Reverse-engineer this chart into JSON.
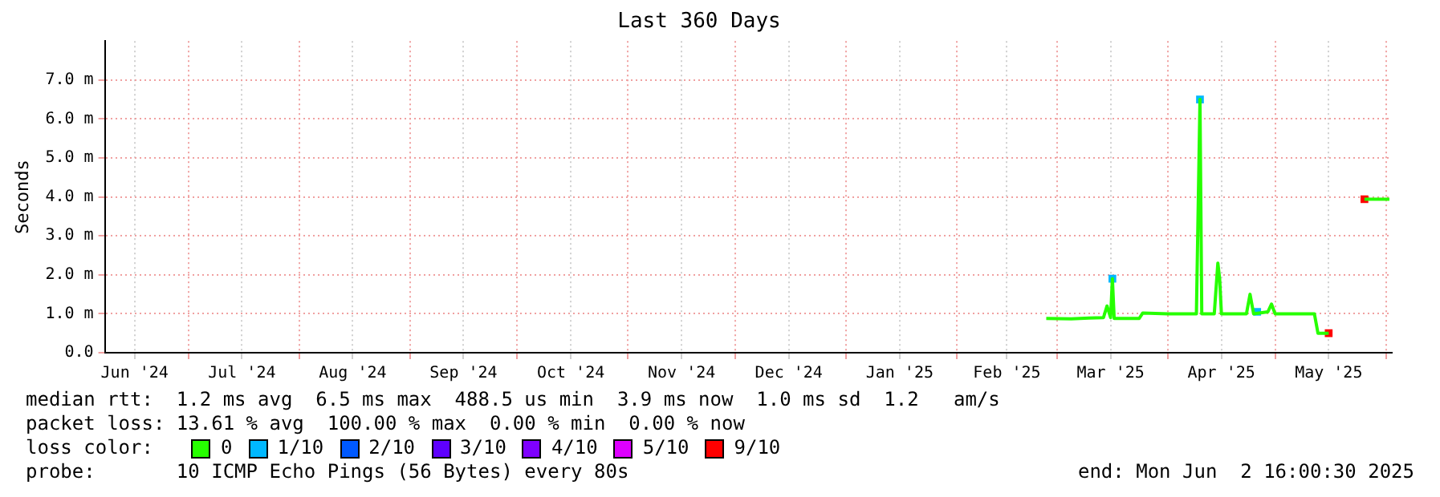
{
  "chart_data": {
    "type": "line",
    "title": "Last 360 Days",
    "ylabel": "Seconds",
    "xlim": [
      "2024-06-07T16:00",
      "2025-06-02T16:00"
    ],
    "xticks": [
      {
        "value": "2024-06-16",
        "label": "Jun '24"
      },
      {
        "value": "2024-07-01",
        "label": null
      },
      {
        "value": "2024-07-16",
        "label": "Jul '24"
      },
      {
        "value": "2024-08-01",
        "label": null
      },
      {
        "value": "2024-08-16",
        "label": "Aug '24"
      },
      {
        "value": "2024-09-01",
        "label": null
      },
      {
        "value": "2024-09-16",
        "label": "Sep '24"
      },
      {
        "value": "2024-10-01",
        "label": null
      },
      {
        "value": "2024-10-16",
        "label": "Oct '24"
      },
      {
        "value": "2024-11-01",
        "label": null
      },
      {
        "value": "2024-11-16",
        "label": "Nov '24"
      },
      {
        "value": "2024-12-01",
        "label": null
      },
      {
        "value": "2024-12-16",
        "label": "Dec '24"
      },
      {
        "value": "2025-01-01",
        "label": null
      },
      {
        "value": "2025-01-16",
        "label": "Jan '25"
      },
      {
        "value": "2025-02-01",
        "label": null
      },
      {
        "value": "2025-02-15",
        "label": "Feb '25"
      },
      {
        "value": "2025-03-01",
        "label": null
      },
      {
        "value": "2025-03-16",
        "label": "Mar '25"
      },
      {
        "value": "2025-04-01",
        "label": null
      },
      {
        "value": "2025-04-16",
        "label": "Apr '25"
      },
      {
        "value": "2025-05-01",
        "label": null
      },
      {
        "value": "2025-05-16",
        "label": "May '25"
      },
      {
        "value": "2025-06-01",
        "label": null
      }
    ],
    "ylim": [
      0,
      8
    ],
    "yticks": [
      {
        "value": 0,
        "label": "0.0"
      },
      {
        "value": 1,
        "label": "1.0 m"
      },
      {
        "value": 2,
        "label": "2.0 m"
      },
      {
        "value": 3,
        "label": "3.0 m"
      },
      {
        "value": 4,
        "label": "4.0 m"
      },
      {
        "value": 5,
        "label": "5.0 m"
      },
      {
        "value": 6,
        "label": "6.0 m"
      },
      {
        "value": 7,
        "label": "7.0 m"
      }
    ],
    "grid": true,
    "legend": "bottom",
    "legend_title": "loss color:",
    "line_style": "solid",
    "series": [
      {
        "name": "0",
        "color": "#26ff00",
        "x": [
          "2025-02-26",
          "2025-03-05",
          "2025-03-10",
          "2025-03-14",
          "2025-03-15",
          "2025-03-16",
          "2025-03-16T12:00",
          "2025-03-17",
          "2025-03-24",
          "2025-03-25",
          "2025-04-01",
          "2025-04-09",
          "2025-04-10",
          "2025-04-10T12:00",
          "2025-04-14",
          "2025-04-15",
          "2025-04-15T12:00",
          "2025-04-16",
          "2025-04-23",
          "2025-04-24",
          "2025-04-25",
          "2025-04-29",
          "2025-04-30",
          "2025-05-01",
          "2025-05-12",
          "2025-05-13",
          "2025-05-16",
          "2025-05-20",
          "2025-05-26",
          "2025-06-02"
        ],
        "values": [
          0.88,
          0.87,
          0.89,
          0.9,
          1.2,
          0.9,
          1.9,
          0.88,
          0.88,
          1.02,
          1.0,
          1.0,
          6.5,
          1.0,
          1.0,
          2.3,
          1.9,
          1.0,
          1.0,
          1.5,
          1.0,
          1.05,
          1.25,
          1.0,
          1.0,
          0.5,
          0.5,
          null,
          3.94,
          3.94
        ]
      },
      {
        "name": "1/10",
        "type": "scatter",
        "color": "#00b8ff",
        "x": [
          "2025-03-16T12:00",
          "2025-04-10",
          "2025-04-26"
        ],
        "values": [
          1.9,
          6.5,
          1.05
        ]
      },
      {
        "name": "2/10",
        "color": "#0059ff"
      },
      {
        "name": "3/10",
        "color": "#5e00ff"
      },
      {
        "name": "4/10",
        "color": "#7e00ff"
      },
      {
        "name": "5/10",
        "color": "#dd00ff"
      },
      {
        "name": "9/10",
        "type": "scatter",
        "color": "#ff0000",
        "x": [
          "2025-05-16",
          "2025-05-26"
        ],
        "values": [
          0.5,
          3.94
        ]
      }
    ],
    "annotations": [
      "median rtt:  1.2 ms avg  6.5 ms max  488.5 us min  3.9 ms now  1.0 ms sd  1.2   am/s",
      "packet loss: 13.61 % avg  100.00 % max  0.00 % min  0.00 % now",
      "probe:       10 ICMP Echo Pings (56 Bytes) every 80s",
      "end: Mon Jun  2 16:00:30 2025"
    ]
  }
}
